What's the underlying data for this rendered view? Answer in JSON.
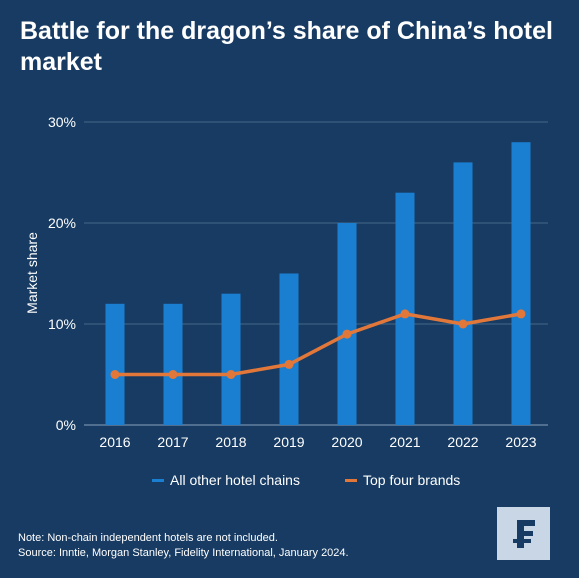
{
  "title": "Battle for the dragon’s share of China’s hotel market",
  "colors": {
    "background": "#173b63",
    "bars": "#1b7fd1",
    "line": "#e2773a",
    "grid": "#46688a"
  },
  "chart_data": {
    "type": "bar",
    "title": "Battle for the dragon’s share of China’s hotel market",
    "xlabel": "",
    "ylabel": "Market share",
    "ylim": [
      0,
      30
    ],
    "yticks": [
      "0%",
      "10%",
      "20%",
      "30%"
    ],
    "categories": [
      "2016",
      "2017",
      "2018",
      "2019",
      "2020",
      "2021",
      "2022",
      "2023"
    ],
    "series": [
      {
        "name": "All other hotel chains",
        "type": "bar",
        "values": [
          12,
          12,
          13,
          15,
          20,
          23,
          26,
          28
        ]
      },
      {
        "name": "Top four brands",
        "type": "line",
        "values": [
          5,
          5,
          5,
          6,
          9,
          11,
          10,
          11
        ]
      }
    ],
    "grid": true,
    "legend": "bottom"
  },
  "legend": {
    "bars_label": "All other hotel chains",
    "line_label": "Top four brands"
  },
  "note": {
    "line1": "Note: Non-chain independent hotels are not included.",
    "line2": "Source: Inntie, Morgan Stanley, Fidelity International, January 2024."
  },
  "logo": {
    "glyph": "₣",
    "icon": "fidelity-logo"
  }
}
